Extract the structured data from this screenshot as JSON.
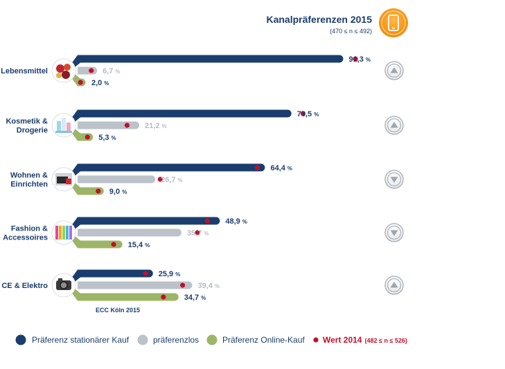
{
  "chart_data": {
    "type": "bar",
    "title": "Kanalpräferenzen 2015",
    "subtitle": "(470 ≤ n ≤ 492)",
    "source": "ECC Köln 2015",
    "unit": "%",
    "categories": [
      {
        "name": "Lebensmittel",
        "lines": [
          "Lebensmittel"
        ],
        "trend": "up",
        "icon": "groceries-icon"
      },
      {
        "name": "Kosmetik & Drogerie",
        "lines": [
          "Kosmetik &",
          "Drogerie"
        ],
        "trend": "up",
        "icon": "cosmetics-icon"
      },
      {
        "name": "Wohnen & Einrichten",
        "lines": [
          "Wohnen &",
          "Einrichten"
        ],
        "trend": "down",
        "icon": "furniture-icon"
      },
      {
        "name": "Fashion & Accessoires",
        "lines": [
          "Fashion &",
          "Accessoires"
        ],
        "trend": "down",
        "icon": "fashion-icon"
      },
      {
        "name": "CE & Elektro",
        "lines": [
          "CE & Elektro"
        ],
        "trend": "up",
        "icon": "camera-icon"
      }
    ],
    "series": [
      {
        "name": "Präferenz stationärer Kauf",
        "color": "#1b3d6e",
        "labelColor": "#1b3d6e",
        "values": [
          91.3,
          73.5,
          64.4,
          48.9,
          25.9
        ],
        "labels": [
          "91,3",
          "73,5",
          "64,4",
          "48,9",
          "25,9"
        ],
        "values2014": [
          95.5,
          77.5,
          61.8,
          44.6,
          23.4
        ]
      },
      {
        "name": "präferenzlos",
        "color": "#bcc2c9",
        "labelColor": "#b6bcc4",
        "values": [
          6.7,
          21.2,
          26.7,
          35.7,
          39.4
        ],
        "labels": [
          "6,7",
          "21,2",
          "26,7",
          "35,7",
          "39,4"
        ],
        "values2014": [
          4.7,
          17.0,
          28.4,
          41.2,
          36.1
        ]
      },
      {
        "name": "Präferenz Online-Kauf",
        "color": "#9cb567",
        "labelColor": "#1b3d6e",
        "values": [
          2.0,
          5.3,
          9.0,
          15.4,
          34.7
        ],
        "labels": [
          "2,0",
          "5,3",
          "9,0",
          "15,4",
          "34,7"
        ],
        "values2014": [
          1.0,
          3.4,
          7.1,
          12.4,
          29.5
        ]
      }
    ],
    "marker": {
      "name": "Wert 2014",
      "range": "(482 ≤ n ≤ 526)",
      "color": "#c0102a"
    },
    "legend_position": "bottom",
    "xlim": [
      0,
      100
    ],
    "grid": false
  }
}
